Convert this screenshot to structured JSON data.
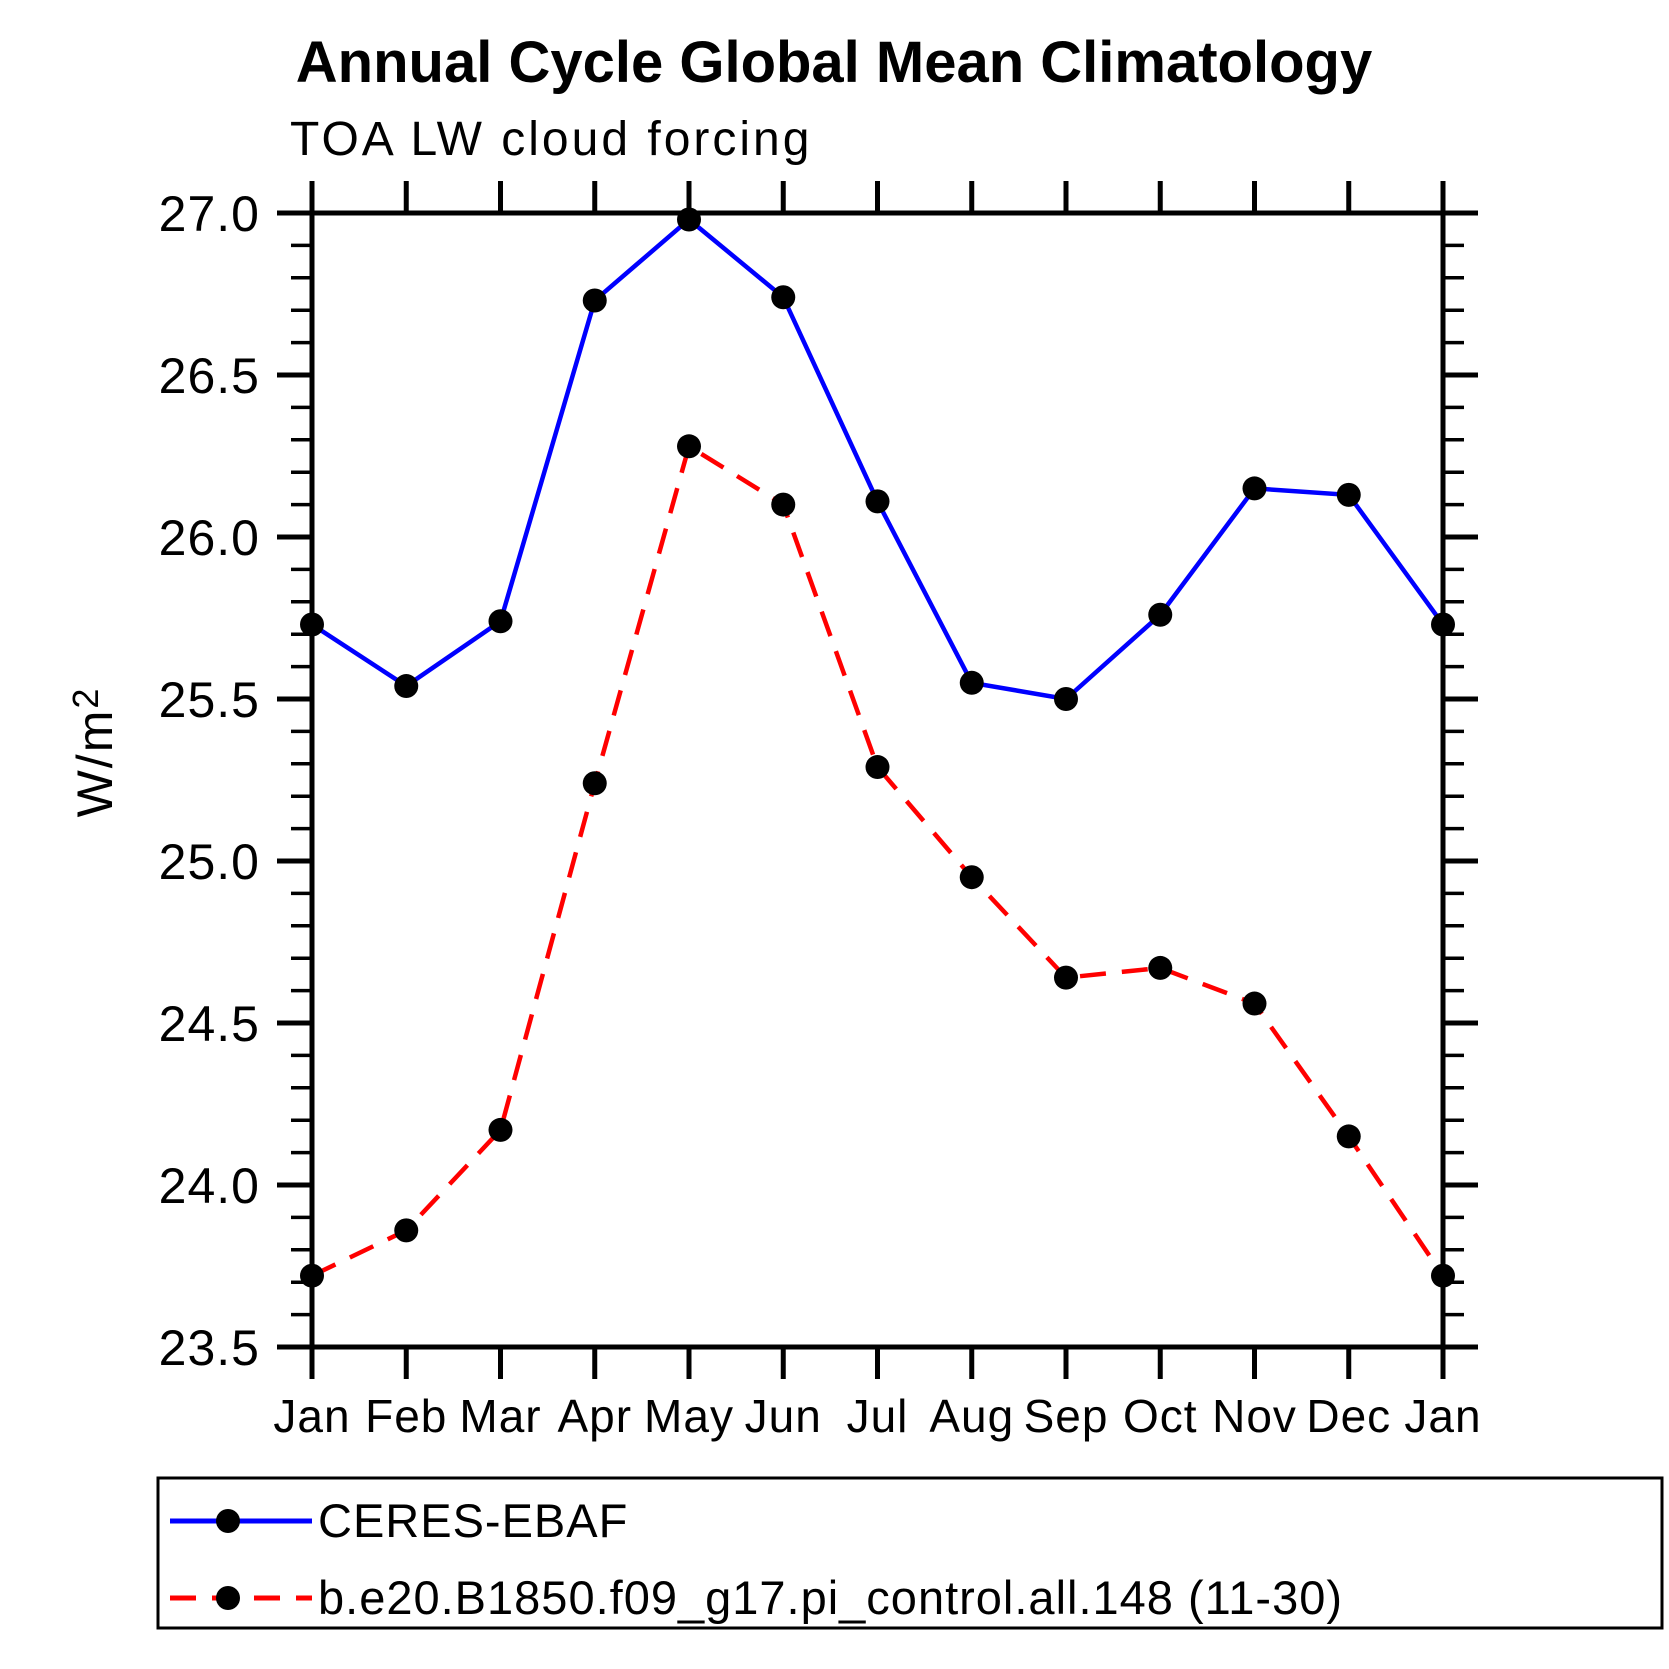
{
  "chart_data": {
    "type": "line",
    "title": "Annual Cycle Global Mean Climatology",
    "subtitle": "TOA LW cloud forcing",
    "ylabel_base": "W/m",
    "ylabel_sup": "2",
    "categories": [
      "Jan",
      "Feb",
      "Mar",
      "Apr",
      "May",
      "Jun",
      "Jul",
      "Aug",
      "Sep",
      "Oct",
      "Nov",
      "Dec",
      "Jan"
    ],
    "series": [
      {
        "name": "CERES-EBAF",
        "color": "#0000ff",
        "line_style": "solid",
        "marker": "filled-circle",
        "marker_color": "#000000",
        "values": [
          25.73,
          25.54,
          25.74,
          26.73,
          26.98,
          26.74,
          26.11,
          25.55,
          25.5,
          25.76,
          26.15,
          26.13,
          25.73
        ]
      },
      {
        "name": "b.e20.B1850.f09_g17.pi_control.all.148 (11-30)",
        "color": "#ff0000",
        "line_style": "dashed",
        "marker": "filled-circle",
        "marker_color": "#000000",
        "values": [
          23.72,
          23.86,
          24.17,
          25.24,
          26.28,
          26.1,
          25.29,
          24.95,
          24.64,
          24.67,
          24.56,
          24.15,
          23.72
        ]
      }
    ],
    "ylim": [
      23.5,
      27.0
    ],
    "ytick_step": 0.5,
    "yminor_step": 0.1,
    "grid": false,
    "legend_position": "bottom",
    "axis_color": "#000000"
  }
}
